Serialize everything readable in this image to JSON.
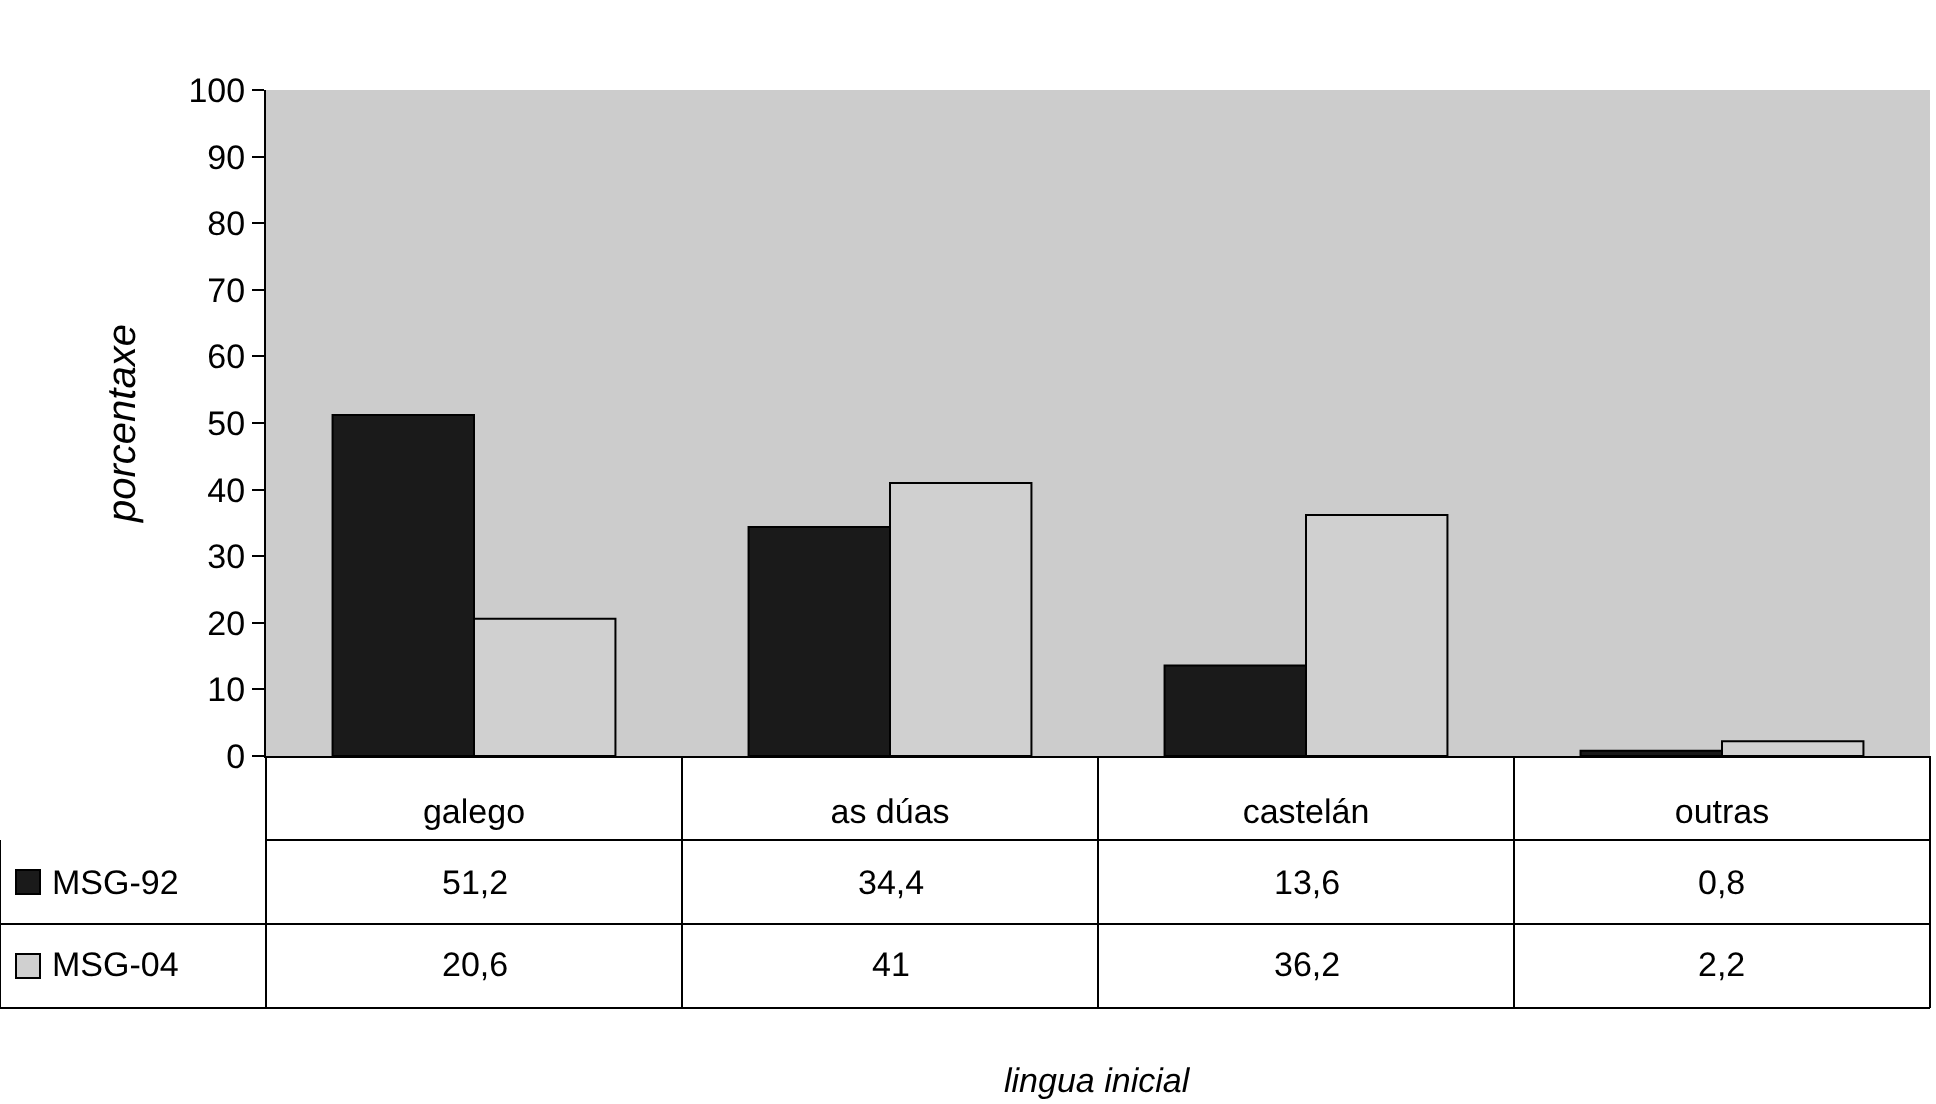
{
  "chart_data": {
    "type": "bar",
    "ylabel": "porcentaxe",
    "annotations": [
      "lingua inicial"
    ],
    "categories": [
      "galego",
      "as dúas",
      "castelán",
      "outras"
    ],
    "series": [
      {
        "name": "MSG-92",
        "color": "#1a1a1a",
        "values": [
          51.2,
          34.4,
          13.6,
          0.8
        ],
        "value_labels": [
          "51,2",
          "34,4",
          "13,6",
          "0,8"
        ]
      },
      {
        "name": "MSG-04",
        "color": "#d0d0d0",
        "values": [
          20.6,
          41,
          36.2,
          2.2
        ],
        "value_labels": [
          "20,6",
          "41",
          "36,2",
          "2,2"
        ]
      }
    ],
    "ylim": [
      0,
      100
    ],
    "yticks": [
      0,
      10,
      20,
      30,
      40,
      50,
      60,
      70,
      80,
      90,
      100
    ],
    "grid": false,
    "legend": "bottom left"
  }
}
